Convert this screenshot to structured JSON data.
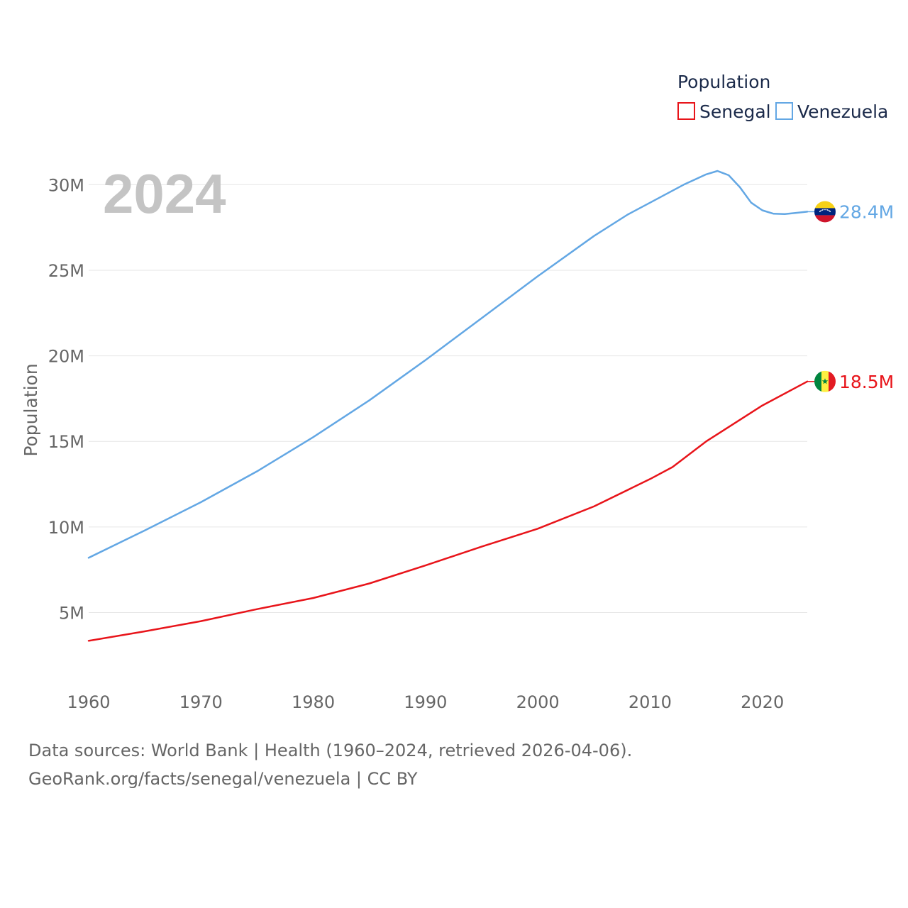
{
  "chart_data": {
    "type": "line",
    "year_label": "2024",
    "ylabel": "Population",
    "xlim": [
      1960,
      2024
    ],
    "ylim": [
      1000000,
      32500000
    ],
    "x_ticks": [
      1960,
      1970,
      1980,
      1990,
      2000,
      2010,
      2020
    ],
    "x_tick_labels": [
      "1960",
      "1970",
      "1980",
      "1990",
      "2000",
      "2010",
      "2020"
    ],
    "y_ticks": [
      5000000,
      10000000,
      15000000,
      20000000,
      25000000,
      30000000
    ],
    "y_tick_labels": [
      "5M",
      "10M",
      "15M",
      "20M",
      "25M",
      "30M"
    ],
    "legend": {
      "title": "Population",
      "entries": [
        {
          "name": "Senegal",
          "color": "#e8141a"
        },
        {
          "name": "Venezuela",
          "color": "#63a7e4"
        }
      ]
    },
    "series": [
      {
        "name": "Venezuela",
        "color": "#63a7e4",
        "end_label": "28.4M",
        "flag": "venezuela-flag-icon",
        "x": [
          1960,
          1965,
          1970,
          1975,
          1980,
          1985,
          1990,
          1995,
          2000,
          2005,
          2008,
          2010,
          2013,
          2015,
          2016,
          2017,
          2018,
          2019,
          2020,
          2021,
          2022,
          2023,
          2024
        ],
        "y": [
          8200000,
          9800000,
          11450000,
          13250000,
          15250000,
          17400000,
          19750000,
          22200000,
          24650000,
          27000000,
          28250000,
          28950000,
          30000000,
          30600000,
          30800000,
          30550000,
          29850000,
          28950000,
          28500000,
          28300000,
          28280000,
          28350000,
          28420000
        ]
      },
      {
        "name": "Senegal",
        "color": "#e8141a",
        "end_label": "18.5M",
        "flag": "senegal-flag-icon",
        "x": [
          1960,
          1965,
          1970,
          1975,
          1980,
          1985,
          1990,
          1995,
          2000,
          2005,
          2010,
          2012,
          2015,
          2020,
          2024
        ],
        "y": [
          3350000,
          3900000,
          4500000,
          5200000,
          5850000,
          6700000,
          7750000,
          8850000,
          9900000,
          11200000,
          12800000,
          13500000,
          15000000,
          17100000,
          18500000
        ]
      }
    ]
  },
  "footer": {
    "line1": "Data sources: World Bank | Health (1960–2024, retrieved 2026-04-06).",
    "line2": "GeoRank.org/facts/senegal/venezuela | CC BY"
  }
}
